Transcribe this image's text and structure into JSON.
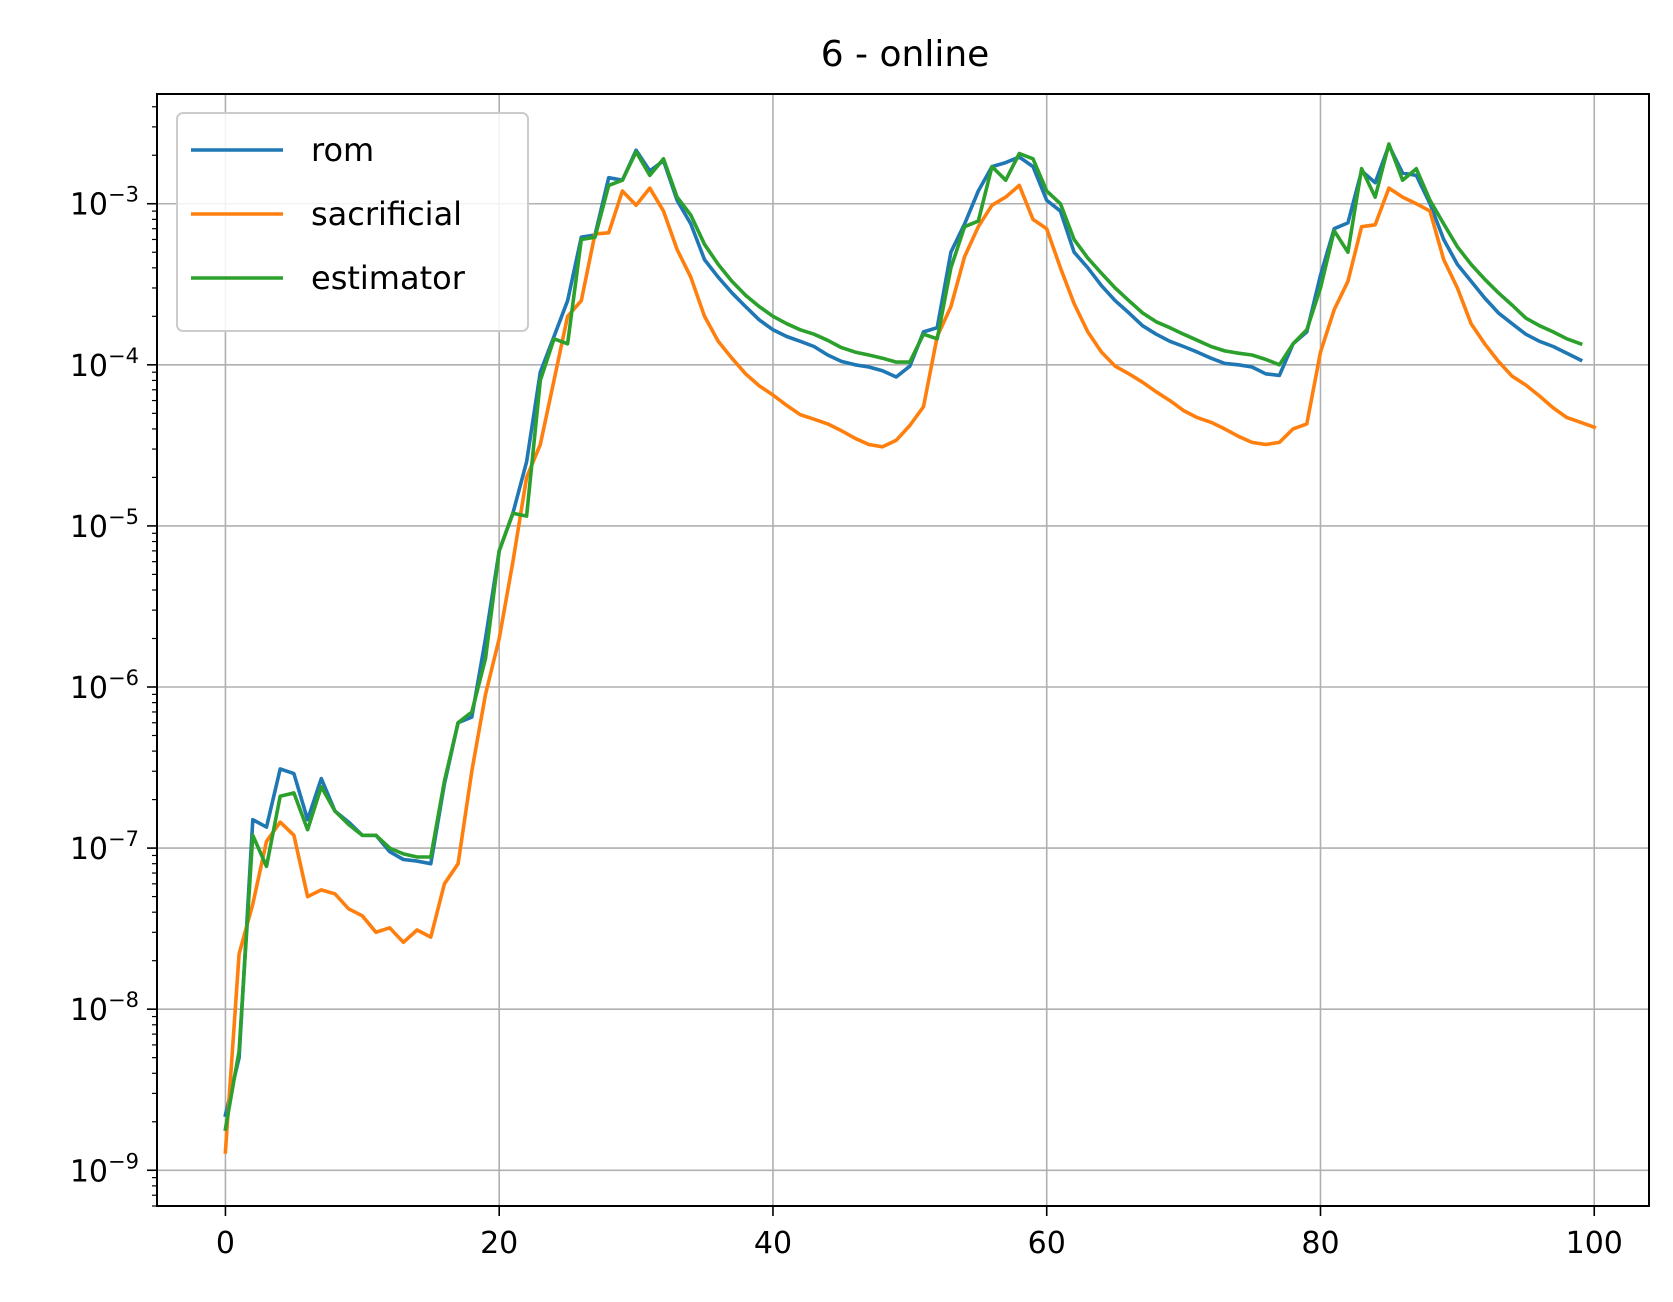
{
  "chart_data": {
    "type": "line",
    "title": "6 - online",
    "xlabel": "",
    "ylabel": "",
    "yscale": "log",
    "xlim": [
      -5,
      104
    ],
    "ylim": [
      6e-10,
      0.0048
    ],
    "xticks": [
      0,
      20,
      40,
      60,
      80,
      100
    ],
    "xtick_labels": [
      "0",
      "20",
      "40",
      "60",
      "80",
      "100"
    ],
    "yticks": [
      1e-09,
      1e-08,
      1e-07,
      1e-06,
      1e-05,
      0.0001,
      0.001
    ],
    "ytick_labels": [
      {
        "base": "10",
        "exp": "−9"
      },
      {
        "base": "10",
        "exp": "−8"
      },
      {
        "base": "10",
        "exp": "−7"
      },
      {
        "base": "10",
        "exp": "−6"
      },
      {
        "base": "10",
        "exp": "−5"
      },
      {
        "base": "10",
        "exp": "−4"
      },
      {
        "base": "10",
        "exp": "−3"
      }
    ],
    "grid": true,
    "legend_position": "top-left",
    "series": [
      {
        "name": "rom",
        "color": "#1f77b4",
        "values": [
          2.2e-09,
          5e-09,
          1.5e-07,
          1.35e-07,
          3.1e-07,
          2.9e-07,
          1.5e-07,
          2.7e-07,
          1.7e-07,
          1.45e-07,
          1.2e-07,
          1.2e-07,
          9.5e-08,
          8.5e-08,
          8.3e-08,
          8e-08,
          2.5e-07,
          6e-07,
          6.5e-07,
          2e-06,
          7e-06,
          1.2e-05,
          2.5e-05,
          9e-05,
          0.00015,
          0.00025,
          0.00062,
          0.00064,
          0.00145,
          0.0014,
          0.00215,
          0.0016,
          0.00185,
          0.00105,
          0.00075,
          0.00045,
          0.00035,
          0.00028,
          0.00023,
          0.00019,
          0.000165,
          0.00015,
          0.00014,
          0.00013,
          0.000115,
          0.000105,
          0.0001,
          9.7e-05,
          9.2e-05,
          8.4e-05,
          9.8e-05,
          0.00016,
          0.00017,
          0.0005,
          0.00075,
          0.0012,
          0.0017,
          0.0018,
          0.00195,
          0.0017,
          0.00105,
          0.0009,
          0.0005,
          0.0004,
          0.00031,
          0.00025,
          0.00021,
          0.000175,
          0.000155,
          0.00014,
          0.00013,
          0.00012,
          0.00011,
          0.000102,
          0.0001,
          9.7e-05,
          8.8e-05,
          8.6e-05,
          0.000135,
          0.00016,
          0.00036,
          0.0007,
          0.00076,
          0.0016,
          0.00135,
          0.0023,
          0.00155,
          0.0015,
          0.001,
          0.0006,
          0.00042,
          0.00033,
          0.00026,
          0.00021,
          0.00018,
          0.000155,
          0.00014,
          0.00013,
          0.000118,
          0.000107
        ]
      },
      {
        "name": "sacrificial",
        "color": "#ff7f0e",
        "values": [
          1.3e-09,
          2.2e-08,
          4.5e-08,
          1.1e-07,
          1.45e-07,
          1.2e-07,
          5e-08,
          5.5e-08,
          5.2e-08,
          4.2e-08,
          3.8e-08,
          3e-08,
          3.2e-08,
          2.6e-08,
          3.1e-08,
          2.8e-08,
          6e-08,
          8e-08,
          3e-07,
          9e-07,
          2e-06,
          6e-06,
          2e-05,
          3.2e-05,
          8e-05,
          0.0002,
          0.00025,
          0.00065,
          0.00066,
          0.0012,
          0.00098,
          0.00125,
          0.0009,
          0.00052,
          0.00035,
          0.0002,
          0.00014,
          0.00011,
          8.8e-05,
          7.4e-05,
          6.5e-05,
          5.6e-05,
          4.9e-05,
          4.6e-05,
          4.3e-05,
          3.9e-05,
          3.5e-05,
          3.2e-05,
          3.1e-05,
          3.4e-05,
          4.2e-05,
          5.5e-05,
          0.00015,
          0.00023,
          0.00047,
          0.00072,
          0.00098,
          0.0011,
          0.0013,
          0.0008,
          0.0007,
          0.0004,
          0.00024,
          0.00016,
          0.00012,
          9.8e-05,
          8.8e-05,
          7.8e-05,
          6.8e-05,
          6e-05,
          5.2e-05,
          4.7e-05,
          4.4e-05,
          4e-05,
          3.6e-05,
          3.3e-05,
          3.2e-05,
          3.3e-05,
          4e-05,
          4.3e-05,
          0.00012,
          0.00022,
          0.00033,
          0.00072,
          0.00074,
          0.00125,
          0.0011,
          0.001,
          0.0009,
          0.00045,
          0.0003,
          0.00018,
          0.000135,
          0.000105,
          8.5e-05,
          7.5e-05,
          6.4e-05,
          5.4e-05,
          4.7e-05,
          4.4e-05,
          4.1e-05
        ]
      },
      {
        "name": "estimator",
        "color": "#2ca02c",
        "values": [
          1.8e-09,
          5.5e-09,
          1.2e-07,
          7.7e-08,
          2.1e-07,
          2.2e-07,
          1.3e-07,
          2.4e-07,
          1.7e-07,
          1.4e-07,
          1.2e-07,
          1.2e-07,
          1e-07,
          9.2e-08,
          8.8e-08,
          8.8e-08,
          2.6e-07,
          6e-07,
          7e-07,
          1.5e-06,
          7e-06,
          1.2e-05,
          1.15e-05,
          8e-05,
          0.000145,
          0.000135,
          0.0006,
          0.00062,
          0.0013,
          0.0014,
          0.0021,
          0.0015,
          0.0019,
          0.0011,
          0.00085,
          0.00056,
          0.00042,
          0.00033,
          0.00027,
          0.00023,
          0.0002,
          0.00018,
          0.000165,
          0.000155,
          0.000142,
          0.000128,
          0.00012,
          0.000115,
          0.00011,
          0.000104,
          0.000104,
          0.000155,
          0.000145,
          0.0004,
          0.00072,
          0.00078,
          0.0017,
          0.0014,
          0.00205,
          0.0019,
          0.0012,
          0.001,
          0.0006,
          0.00046,
          0.00037,
          0.0003,
          0.00025,
          0.00021,
          0.000185,
          0.00017,
          0.000155,
          0.000142,
          0.00013,
          0.000122,
          0.000118,
          0.000115,
          0.000108,
          0.0001,
          0.000135,
          0.000165,
          0.0003,
          0.00068,
          0.0005,
          0.00165,
          0.0011,
          0.00235,
          0.0014,
          0.00165,
          0.00105,
          0.00075,
          0.00054,
          0.00042,
          0.00034,
          0.00028,
          0.000235,
          0.000195,
          0.000175,
          0.00016,
          0.000145,
          0.000135
        ]
      }
    ]
  }
}
